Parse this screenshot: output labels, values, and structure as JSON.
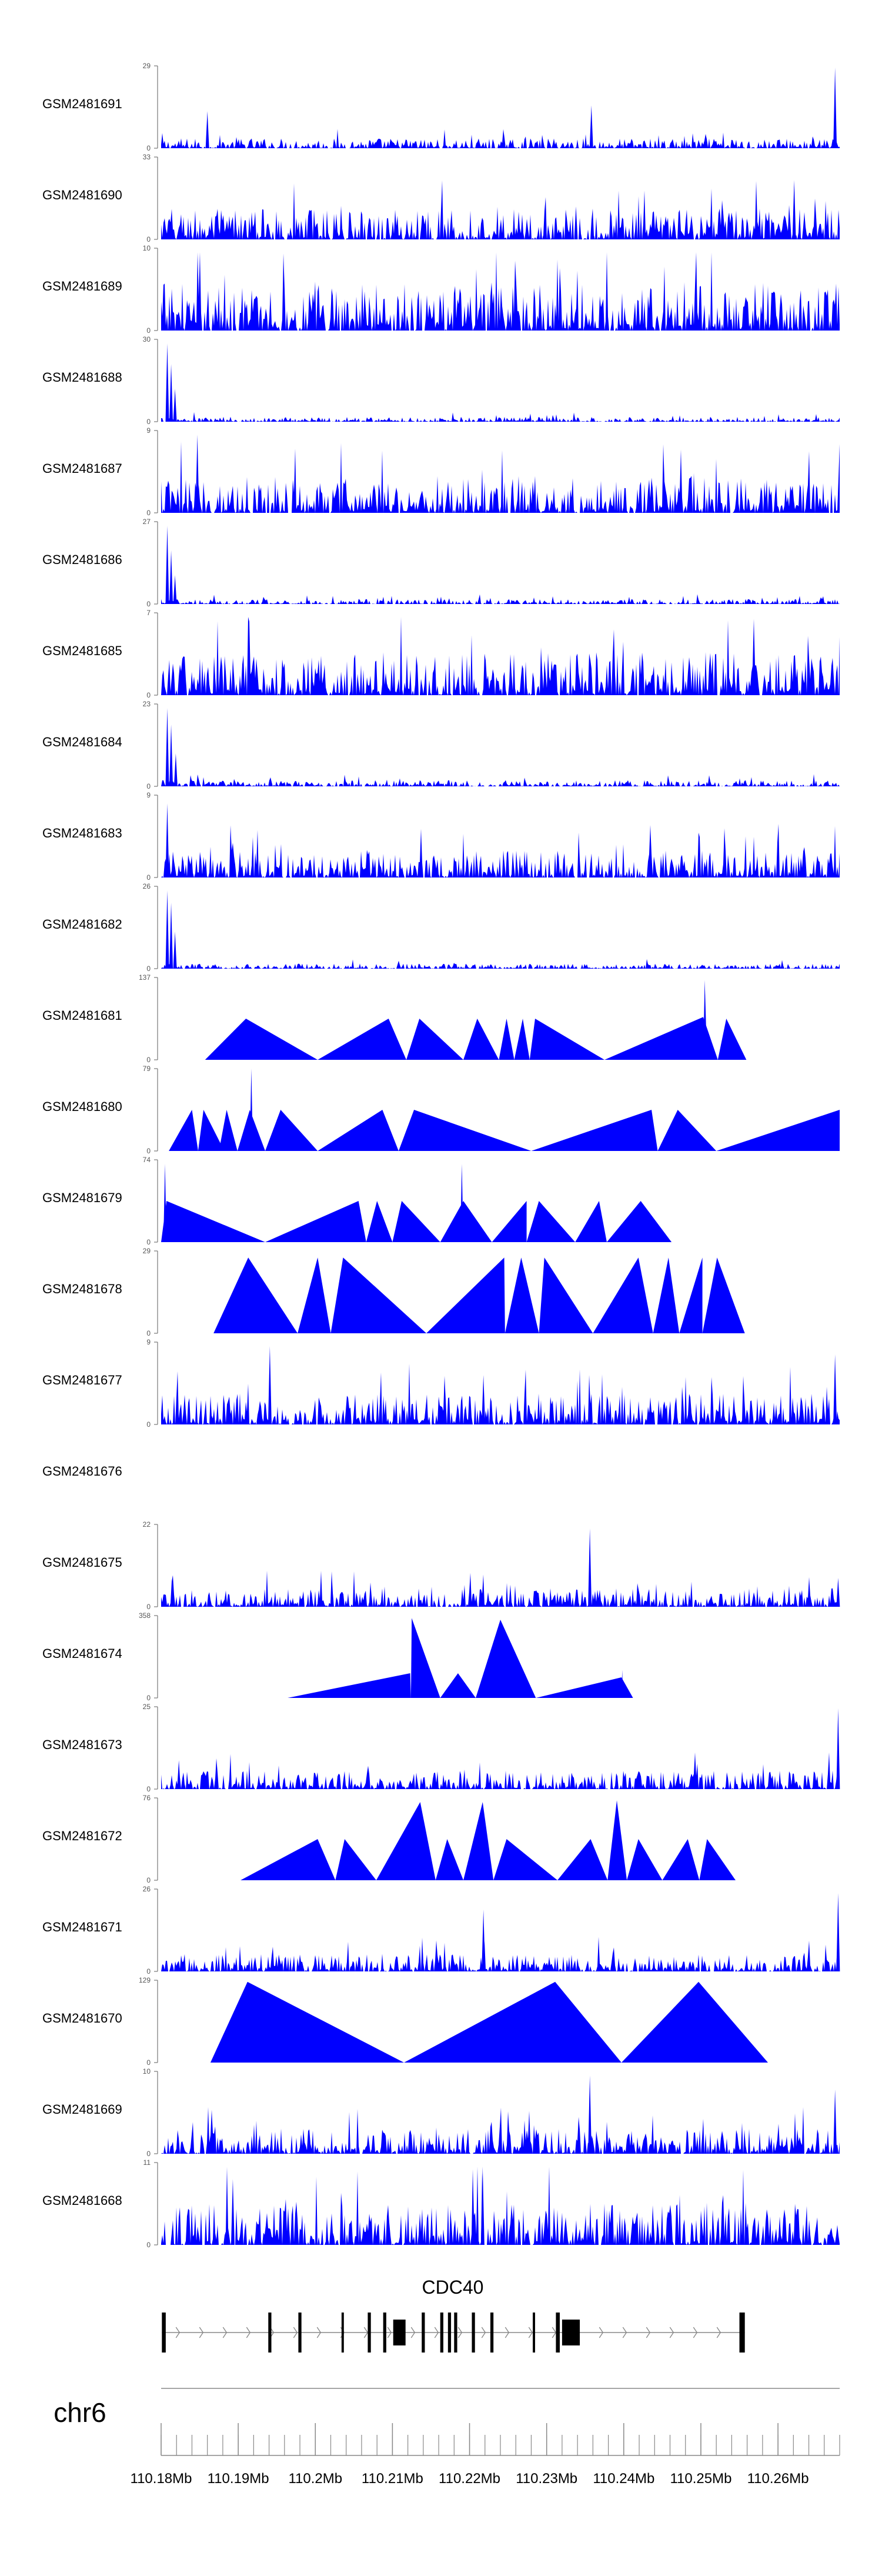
{
  "chart_data": {
    "type": "area",
    "title": "",
    "chromosome": "chr6",
    "gene": "CDC40",
    "fill_color": "#0000ff",
    "axis_color": "#777777",
    "x_range": [
      110.18,
      110.268
    ],
    "x_unit": "Mb",
    "x_ticks": [
      110.18,
      110.19,
      110.2,
      110.21,
      110.22,
      110.23,
      110.24,
      110.25,
      110.26
    ],
    "x_tick_labels": [
      "110.18Mb",
      "110.19Mb",
      "110.2Mb",
      "110.21Mb",
      "110.22Mb",
      "110.23Mb",
      "110.24Mb",
      "110.25Mb",
      "110.26Mb"
    ],
    "tracks": [
      {
        "name": "GSM2481691",
        "ymax": 29,
        "ymax_label": "29",
        "ymin_label": "0",
        "kind": "dense",
        "level": 0.08,
        "spikes": [
          [
            110.186,
            0.45
          ],
          [
            110.2358,
            0.52
          ],
          [
            110.2674,
            0.98
          ]
        ]
      },
      {
        "name": "GSM2481690",
        "ymax": 33,
        "ymax_label": "33",
        "ymin_label": "0",
        "kind": "dense",
        "level": 0.25,
        "spikes": [
          [
            110.2621,
            0.72
          ],
          [
            110.2338,
            0.4
          ]
        ]
      },
      {
        "name": "GSM2481689",
        "ymax": 10,
        "ymax_label": "10",
        "ymin_label": "0",
        "kind": "dense",
        "level": 0.4,
        "spikes": []
      },
      {
        "name": "GSM2481688",
        "ymax": 30,
        "ymax_label": "30",
        "ymin_label": "0",
        "kind": "dense",
        "level": 0.04,
        "spikes": [
          [
            110.1808,
            0.95
          ],
          [
            110.1813,
            0.7
          ],
          [
            110.1818,
            0.4
          ]
        ]
      },
      {
        "name": "GSM2481687",
        "ymax": 9,
        "ymax_label": "9",
        "ymin_label": "0",
        "kind": "dense",
        "level": 0.3,
        "spikes": [
          [
            110.1847,
            0.95
          ]
        ]
      },
      {
        "name": "GSM2481686",
        "ymax": 27,
        "ymax_label": "27",
        "ymin_label": "0",
        "kind": "dense",
        "level": 0.04,
        "spikes": [
          [
            110.1808,
            0.95
          ],
          [
            110.1813,
            0.65
          ],
          [
            110.1818,
            0.35
          ]
        ]
      },
      {
        "name": "GSM2481685",
        "ymax": 7,
        "ymax_label": "7",
        "ymin_label": "0",
        "kind": "dense",
        "level": 0.35,
        "spikes": []
      },
      {
        "name": "GSM2481684",
        "ymax": 23,
        "ymax_label": "23",
        "ymin_label": "0",
        "kind": "dense",
        "level": 0.05,
        "spikes": [
          [
            110.1808,
            0.95
          ],
          [
            110.1813,
            0.75
          ],
          [
            110.1819,
            0.4
          ]
        ]
      },
      {
        "name": "GSM2481683",
        "ymax": 9,
        "ymax_label": "9",
        "ymin_label": "0",
        "kind": "dense",
        "level": 0.22,
        "spikes": [
          [
            110.1808,
            0.9
          ]
        ]
      },
      {
        "name": "GSM2481682",
        "ymax": 26,
        "ymax_label": "26",
        "ymin_label": "0",
        "kind": "dense",
        "level": 0.04,
        "spikes": [
          [
            110.1808,
            0.95
          ],
          [
            110.1813,
            0.8
          ],
          [
            110.1818,
            0.45
          ]
        ]
      },
      {
        "name": "GSM2481681",
        "ymax": 137,
        "ymax_label": "137",
        "ymin_label": "0",
        "kind": "peaks",
        "peaks": [
          [
            110.1857,
            110.191,
            110.2003,
            0.5
          ],
          [
            110.2003,
            110.2095,
            110.2118,
            0.5
          ],
          [
            110.2118,
            110.2135,
            110.2192,
            0.5
          ],
          [
            110.2192,
            110.221,
            110.2238,
            0.5
          ],
          [
            110.2238,
            110.2248,
            110.2258,
            0.5
          ],
          [
            110.2258,
            110.2269,
            110.2278,
            0.5
          ],
          [
            110.2278,
            110.2285,
            110.2375,
            0.5
          ],
          [
            110.2375,
            110.2503,
            110.2522,
            0.52
          ],
          [
            110.2503,
            110.2505,
            110.2508,
            0.97
          ],
          [
            110.2522,
            110.2533,
            110.2559,
            0.5
          ]
        ]
      },
      {
        "name": "GSM2481680",
        "ymax": 79,
        "ymax_label": "79",
        "ymin_label": "0",
        "kind": "peaks",
        "peaks": [
          [
            110.181,
            110.184,
            110.1848,
            0.5
          ],
          [
            110.1848,
            110.1855,
            110.1882,
            0.5
          ],
          [
            110.1875,
            110.1885,
            110.1899,
            0.5
          ],
          [
            110.1899,
            110.1915,
            110.1935,
            0.5
          ],
          [
            110.1915,
            110.1917,
            110.1919,
            1.0
          ],
          [
            110.1935,
            110.1955,
            110.2003,
            0.5
          ],
          [
            110.2003,
            110.2087,
            110.2108,
            0.5
          ],
          [
            110.2108,
            110.2128,
            110.228,
            0.5
          ],
          [
            110.228,
            110.2436,
            110.2444,
            0.5
          ],
          [
            110.2444,
            110.247,
            110.252,
            0.5
          ],
          [
            110.252,
            110.268,
            110.268,
            0.5
          ]
        ]
      },
      {
        "name": "GSM2481679",
        "ymax": 74,
        "ymax_label": "74",
        "ymin_label": "0",
        "kind": "peaks",
        "peaks": [
          [
            110.18,
            110.1807,
            110.1935,
            0.5
          ],
          [
            110.1803,
            110.1805,
            110.1807,
            0.95
          ],
          [
            110.1935,
            110.2056,
            110.2066,
            0.5
          ],
          [
            110.2066,
            110.208,
            110.21,
            0.5
          ],
          [
            110.21,
            110.2112,
            110.2162,
            0.5
          ],
          [
            110.2162,
            110.2192,
            110.2229,
            0.5
          ],
          [
            110.2188,
            110.219,
            110.2192,
            0.95
          ],
          [
            110.2229,
            110.2274,
            110.2274,
            0.5
          ],
          [
            110.2274,
            110.229,
            110.2337,
            0.5
          ],
          [
            110.2337,
            110.2368,
            110.2378,
            0.5
          ],
          [
            110.2378,
            110.2422,
            110.2462,
            0.5
          ]
        ]
      },
      {
        "name": "GSM2481678",
        "ymax": 29,
        "ymax_label": "29",
        "ymin_label": "0",
        "kind": "peaks",
        "peaks": [
          [
            110.1868,
            110.1913,
            110.1977,
            0.92
          ],
          [
            110.1977,
            110.2003,
            110.202,
            0.92
          ],
          [
            110.202,
            110.2036,
            110.2144,
            0.92
          ],
          [
            110.2144,
            110.2245,
            110.2246,
            0.92
          ],
          [
            110.2246,
            110.2267,
            110.229,
            0.92
          ],
          [
            110.229,
            110.2297,
            110.236,
            0.92
          ],
          [
            110.236,
            110.2419,
            110.2438,
            0.92
          ],
          [
            110.2438,
            110.2458,
            110.2472,
            0.92
          ],
          [
            110.2472,
            110.2502,
            110.2502,
            0.92
          ],
          [
            110.2502,
            110.2521,
            110.2557,
            0.92
          ]
        ]
      },
      {
        "name": "GSM2481677",
        "ymax": 9,
        "ymax_label": "9",
        "ymin_label": "0",
        "kind": "dense",
        "level": 0.25,
        "spikes": [
          [
            110.1941,
            0.95
          ],
          [
            110.2674,
            0.85
          ],
          [
            110.2218,
            0.6
          ]
        ]
      },
      {
        "name": "GSM2481676",
        "ymax": null,
        "ymax_label": "",
        "ymin_label": "",
        "kind": "empty"
      },
      {
        "name": "GSM2481675",
        "ymax": 22,
        "ymax_label": "22",
        "ymin_label": "0",
        "kind": "dense",
        "level": 0.15,
        "spikes": [
          [
            110.2356,
            0.95
          ],
          [
            110.2678,
            0.35
          ]
        ]
      },
      {
        "name": "GSM2481674",
        "ymax": 358,
        "ymax_label": "358",
        "ymin_label": "0",
        "kind": "peaks",
        "peaks": [
          [
            110.1964,
            110.2123,
            110.2124,
            0.3
          ],
          [
            110.2124,
            110.2125,
            110.2162,
            0.97
          ],
          [
            110.2162,
            110.2185,
            110.2208,
            0.3
          ],
          [
            110.2208,
            110.224,
            110.2286,
            0.95
          ],
          [
            110.2286,
            110.2397,
            110.2412,
            0.25
          ],
          [
            110.2397,
            110.2398,
            110.2399,
            0.34
          ]
        ]
      },
      {
        "name": "GSM2481673",
        "ymax": 25,
        "ymax_label": "25",
        "ymin_label": "0",
        "kind": "dense",
        "level": 0.15,
        "spikes": [
          [
            110.2678,
            0.98
          ],
          [
            110.1823,
            0.35
          ]
        ]
      },
      {
        "name": "GSM2481672",
        "ymax": 76,
        "ymax_label": "76",
        "ymin_label": "0",
        "kind": "peaks",
        "peaks": [
          [
            110.1903,
            110.2003,
            110.2026,
            0.5
          ],
          [
            110.2026,
            110.2038,
            110.2079,
            0.5
          ],
          [
            110.2079,
            110.2136,
            110.2156,
            0.95
          ],
          [
            110.2156,
            110.2171,
            110.2192,
            0.5
          ],
          [
            110.2192,
            110.2217,
            110.2231,
            0.95
          ],
          [
            110.2231,
            110.2248,
            110.2314,
            0.5
          ],
          [
            110.2314,
            110.2357,
            110.2379,
            0.5
          ],
          [
            110.2379,
            110.2391,
            110.2404,
            0.97
          ],
          [
            110.2404,
            110.2419,
            110.245,
            0.5
          ],
          [
            110.245,
            110.2483,
            110.2498,
            0.5
          ],
          [
            110.2498,
            110.2508,
            110.2545,
            0.5
          ]
        ]
      },
      {
        "name": "GSM2481671",
        "ymax": 26,
        "ymax_label": "26",
        "ymin_label": "0",
        "kind": "dense",
        "level": 0.14,
        "spikes": [
          [
            110.2218,
            0.75
          ],
          [
            110.2678,
            0.95
          ]
        ]
      },
      {
        "name": "GSM2481670",
        "ymax": 129,
        "ymax_label": "129",
        "ymin_label": "0",
        "kind": "peaks",
        "peaks": [
          [
            110.1864,
            110.1912,
            110.2115,
            0.98
          ],
          [
            110.2115,
            110.2311,
            110.2397,
            0.98
          ],
          [
            110.2397,
            110.2497,
            110.2587,
            0.98
          ]
        ]
      },
      {
        "name": "GSM2481669",
        "ymax": 10,
        "ymax_label": "10",
        "ymin_label": "0",
        "kind": "dense",
        "level": 0.2,
        "spikes": [
          [
            110.2356,
            0.95
          ],
          [
            110.2674,
            0.78
          ]
        ]
      },
      {
        "name": "GSM2481668",
        "ymax": 11,
        "ymax_label": "11",
        "ymin_label": "0",
        "kind": "dense",
        "level": 0.35,
        "spikes": [
          [
            110.2217,
            0.95
          ],
          [
            110.1893,
            0.8
          ]
        ]
      }
    ],
    "gene_model": {
      "start": 110.1801,
      "end": 110.2557,
      "strand": "+",
      "exons": [
        [
          110.1801,
          110.1806
        ],
        [
          110.1939,
          110.1943
        ],
        [
          110.1978,
          110.1982
        ],
        [
          110.2034,
          110.2037
        ],
        [
          110.2068,
          110.2072
        ],
        [
          110.2088,
          110.2092
        ],
        [
          110.2101,
          110.2117
        ],
        [
          110.2138,
          110.2142
        ],
        [
          110.2162,
          110.2166
        ],
        [
          110.2172,
          110.2176
        ],
        [
          110.218,
          110.2184
        ],
        [
          110.2203,
          110.2207
        ],
        [
          110.2227,
          110.2231
        ],
        [
          110.2282,
          110.2285
        ],
        [
          110.2312,
          110.2317
        ],
        [
          110.232,
          110.2343
        ],
        [
          110.255,
          110.2557
        ]
      ]
    }
  }
}
